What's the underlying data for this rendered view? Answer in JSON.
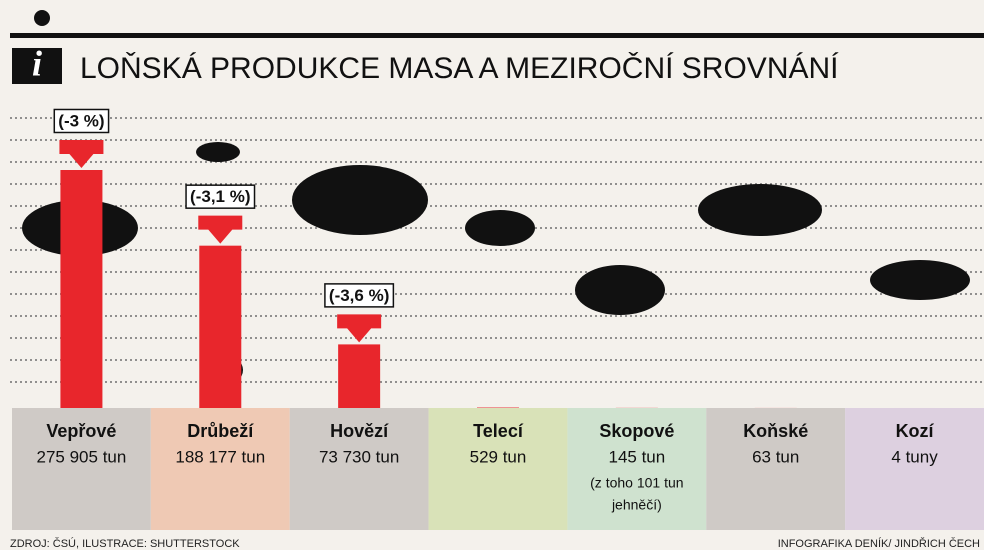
{
  "chart_data": {
    "type": "bar",
    "title": "LOŇSKÁ PRODUKCE MASA A MEZIROČNÍ SROVNÁNÍ",
    "categories": [
      "Vepřové",
      "Drůbeží",
      "Hovězí",
      "Telecí",
      "Skopové",
      "Koňské",
      "Kozí"
    ],
    "values": [
      275905,
      188177,
      73730,
      529,
      145,
      63,
      4
    ],
    "value_labels": [
      "275 905 tun",
      "188 177 tun",
      "73 730 tun",
      "529 tun",
      "145 tun",
      "63 tun",
      "4 tuny"
    ],
    "change_labels": [
      "(-3 %)",
      "(-3,1 %)",
      "(-3,6 %)",
      null,
      null,
      null,
      null
    ],
    "notes": [
      null,
      null,
      null,
      null,
      [
        "(z toho 101 tun",
        "jehněčí)"
      ],
      null,
      null
    ],
    "color": "#e8262c",
    "box_colors": [
      "#cfcac6",
      "#efc9b4",
      "#cfcac6",
      "#d9e2b8",
      "#cfe2cf",
      "#cfcac6",
      "#ddd0e0"
    ],
    "source": "ZDROJ: ČSÚ, ILUSTRACE: SHUTTERSTOCK",
    "credit": "INFOGRAFIKA DENÍK/ JINDŘICH ČECH"
  }
}
